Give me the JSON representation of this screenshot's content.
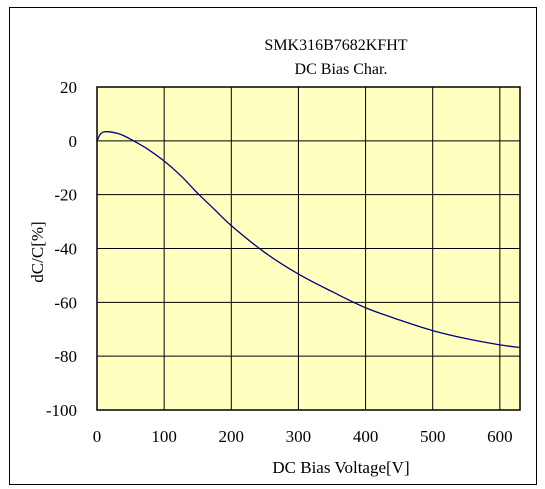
{
  "chart_data": {
    "type": "line",
    "title": "SMK316B7682KFHT",
    "subtitle": "DC Bias Char.",
    "xlabel": "DC Bias Voltage[V]",
    "ylabel": "dC/C[%]",
    "xlim": [
      0,
      630
    ],
    "ylim": [
      -100,
      20
    ],
    "xticks": [
      0,
      100,
      200,
      300,
      400,
      500,
      600
    ],
    "yticks": [
      20,
      0,
      -20,
      -40,
      -60,
      -80,
      -100
    ],
    "xtick_labels": [
      "0",
      "100",
      "200",
      "300",
      "400",
      "500",
      "600"
    ],
    "ytick_labels": [
      "20",
      "0",
      "-20",
      "-40",
      "-60",
      "-80",
      "-100"
    ],
    "grid": true,
    "legend": "none",
    "plot_background": "#FFFFC0",
    "line_color": "#000080",
    "series": [
      {
        "x": [
          0,
          5,
          10,
          15,
          20,
          30,
          40,
          50,
          75,
          100,
          125,
          150,
          175,
          200,
          250,
          300,
          350,
          400,
          450,
          500,
          550,
          600,
          630
        ],
        "y": [
          0,
          2.5,
          3.3,
          3.4,
          3.3,
          2.8,
          1.9,
          0.6,
          -3.0,
          -7.5,
          -13.0,
          -19.5,
          -25.5,
          -31.5,
          -41.5,
          -49.5,
          -56.0,
          -62.0,
          -66.5,
          -70.5,
          -73.5,
          -75.8,
          -76.8
        ]
      }
    ]
  }
}
